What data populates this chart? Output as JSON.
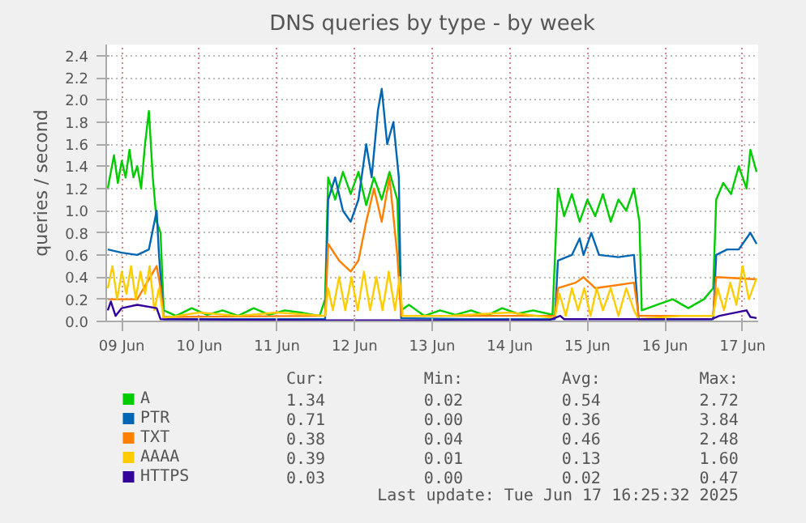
{
  "chart_data": {
    "type": "line",
    "title": "DNS queries by type - by week",
    "ylabel": "queries / second",
    "xlim": [
      "2025-06-09T07:12",
      "2025-06-17T16:48"
    ],
    "ylim": [
      0,
      2.5
    ],
    "xticks": [
      {
        "value": "2025-06-09T12:00",
        "label": "09 Jun"
      },
      {
        "value": "2025-06-10T12:00",
        "label": "10 Jun"
      },
      {
        "value": "2025-06-11T12:00",
        "label": "11 Jun"
      },
      {
        "value": "2025-06-12T12:00",
        "label": "12 Jun"
      },
      {
        "value": "2025-06-13T12:00",
        "label": "13 Jun"
      },
      {
        "value": "2025-06-14T12:00",
        "label": "14 Jun"
      },
      {
        "value": "2025-06-15T12:00",
        "label": "15 Jun"
      },
      {
        "value": "2025-06-16T12:00",
        "label": "16 Jun"
      },
      {
        "value": "2025-06-17T12:00",
        "label": "17 Jun"
      }
    ],
    "yticks": [
      {
        "value": 0,
        "label": "0.0"
      },
      {
        "value": 0.2,
        "label": "0.2"
      },
      {
        "value": 0.4,
        "label": "0.4"
      },
      {
        "value": 0.6,
        "label": "0.6"
      },
      {
        "value": 0.8,
        "label": "0.8"
      },
      {
        "value": 1,
        "label": "1.0"
      },
      {
        "value": 1.2,
        "label": "1.2"
      },
      {
        "value": 1.4,
        "label": "1.4"
      },
      {
        "value": 1.6,
        "label": "1.6"
      },
      {
        "value": 1.8,
        "label": "1.8"
      },
      {
        "value": 2,
        "label": "2.0"
      },
      {
        "value": 2.2,
        "label": "2.2"
      },
      {
        "value": 2.4,
        "label": "2.4"
      }
    ],
    "grid": true,
    "legend": "bottom",
    "series": [
      {
        "name": "A",
        "color": "#00cc00",
        "x": [
          "2025-06-09T07:41",
          "2025-06-09T09:36",
          "2025-06-09T10:48",
          "2025-06-09T12:00",
          "2025-06-09T13:12",
          "2025-06-09T14:24",
          "2025-06-09T15:36",
          "2025-06-09T16:48",
          "2025-06-09T18:00",
          "2025-06-09T19:12",
          "2025-06-09T20:24",
          "2025-06-09T21:36",
          "2025-06-09T22:48",
          "2025-06-10T00:00",
          "2025-06-10T00:58",
          "2025-06-10T04:48",
          "2025-06-10T09:36",
          "2025-06-10T14:24",
          "2025-06-10T19:12",
          "2025-06-11T00:00",
          "2025-06-11T04:48",
          "2025-06-11T09:36",
          "2025-06-11T14:24",
          "2025-06-11T19:12",
          "2025-06-12T01:12",
          "2025-06-12T02:53",
          "2025-06-12T03:50",
          "2025-06-12T06:00",
          "2025-06-12T08:24",
          "2025-06-12T10:48",
          "2025-06-12T13:12",
          "2025-06-12T15:36",
          "2025-06-12T18:00",
          "2025-06-12T20:24",
          "2025-06-12T22:48",
          "2025-06-13T01:12",
          "2025-06-13T02:24",
          "2025-06-13T04:48",
          "2025-06-13T09:36",
          "2025-06-13T14:24",
          "2025-06-13T19:12",
          "2025-06-14T00:00",
          "2025-06-14T04:48",
          "2025-06-14T09:36",
          "2025-06-14T14:24",
          "2025-06-14T19:12",
          "2025-06-15T01:12",
          "2025-06-15T02:53",
          "2025-06-15T04:48",
          "2025-06-15T07:12",
          "2025-06-15T09:36",
          "2025-06-15T12:00",
          "2025-06-15T14:24",
          "2025-06-15T16:48",
          "2025-06-15T19:12",
          "2025-06-15T21:36",
          "2025-06-16T00:00",
          "2025-06-16T02:24",
          "2025-06-16T04:05",
          "2025-06-16T04:48",
          "2025-06-16T09:36",
          "2025-06-16T14:24",
          "2025-06-16T19:12",
          "2025-06-17T00:00",
          "2025-06-17T02:53",
          "2025-06-17T03:50",
          "2025-06-17T06:00",
          "2025-06-17T08:24",
          "2025-06-17T10:48",
          "2025-06-17T13:12",
          "2025-06-17T14:24",
          "2025-06-17T16:19"
        ],
        "values": [
          1.2,
          1.5,
          1.25,
          1.45,
          1.3,
          1.55,
          1.3,
          1.4,
          1.2,
          1.6,
          1.9,
          1.3,
          0.9,
          0.8,
          0.1,
          0.05,
          0.12,
          0.06,
          0.1,
          0.05,
          0.12,
          0.06,
          0.1,
          0.08,
          0.05,
          0.2,
          1.3,
          1.1,
          1.35,
          1.15,
          1.35,
          1.05,
          1.3,
          1.1,
          1.35,
          1.1,
          0.1,
          0.15,
          0.05,
          0.1,
          0.06,
          0.1,
          0.05,
          0.12,
          0.07,
          0.1,
          0.06,
          1.2,
          0.95,
          1.15,
          0.9,
          1.1,
          0.95,
          1.15,
          0.9,
          1.1,
          1.0,
          1.2,
          0.9,
          0.1,
          0.15,
          0.2,
          0.12,
          0.2,
          0.3,
          1.1,
          1.25,
          1.15,
          1.4,
          1.2,
          1.55,
          1.35
        ]
      },
      {
        "name": "PTR",
        "color": "#0066b3",
        "x": [
          "2025-06-09T07:41",
          "2025-06-09T12:00",
          "2025-06-09T16:48",
          "2025-06-09T20:24",
          "2025-06-09T22:48",
          "2025-06-09T23:31",
          "2025-06-10T00:58",
          "2025-06-11T00:00",
          "2025-06-12T02:53",
          "2025-06-12T03:50",
          "2025-06-12T06:00",
          "2025-06-12T08:24",
          "2025-06-12T10:48",
          "2025-06-12T13:12",
          "2025-06-12T15:36",
          "2025-06-12T17:17",
          "2025-06-12T19:12",
          "2025-06-12T20:24",
          "2025-06-12T22:05",
          "2025-06-13T00:00",
          "2025-06-13T01:41",
          "2025-06-13T02:24",
          "2025-06-14T00:00",
          "2025-06-15T01:55",
          "2025-06-15T02:53",
          "2025-06-15T07:12",
          "2025-06-15T09:36",
          "2025-06-15T10:48",
          "2025-06-15T13:12",
          "2025-06-15T15:36",
          "2025-06-15T21:36",
          "2025-06-16T02:24",
          "2025-06-16T03:50",
          "2025-06-17T02:53",
          "2025-06-17T03:50",
          "2025-06-17T07:12",
          "2025-06-17T10:48",
          "2025-06-17T14:24",
          "2025-06-17T16:19"
        ],
        "values": [
          0.65,
          0.62,
          0.6,
          0.65,
          1.0,
          0.6,
          0.02,
          0.02,
          0.02,
          1.1,
          1.3,
          1.0,
          0.9,
          1.1,
          1.6,
          1.3,
          1.9,
          2.1,
          1.6,
          1.8,
          1.3,
          0.03,
          0.02,
          0.02,
          0.55,
          0.6,
          0.75,
          0.6,
          0.8,
          0.6,
          0.58,
          0.6,
          0.02,
          0.02,
          0.6,
          0.65,
          0.65,
          0.8,
          0.7
        ]
      },
      {
        "name": "TXT",
        "color": "#ff8000",
        "x": [
          "2025-06-09T07:41",
          "2025-06-09T16:48",
          "2025-06-09T22:48",
          "2025-06-10T00:00",
          "2025-06-10T00:58",
          "2025-06-12T02:53",
          "2025-06-12T03:50",
          "2025-06-12T07:12",
          "2025-06-12T10:48",
          "2025-06-12T13:12",
          "2025-06-12T15:36",
          "2025-06-12T18:00",
          "2025-06-12T20:24",
          "2025-06-12T22:48",
          "2025-06-13T01:12",
          "2025-06-13T02:24",
          "2025-06-15T01:55",
          "2025-06-15T02:53",
          "2025-06-15T08:24",
          "2025-06-15T10:48",
          "2025-06-15T14:24",
          "2025-06-16T02:24",
          "2025-06-16T03:50",
          "2025-06-17T02:53",
          "2025-06-17T03:50",
          "2025-06-17T16:19"
        ],
        "values": [
          0.2,
          0.2,
          0.5,
          0.3,
          0.04,
          0.05,
          0.7,
          0.55,
          0.45,
          0.55,
          0.9,
          1.2,
          0.9,
          1.3,
          0.6,
          0.05,
          0.05,
          0.3,
          0.35,
          0.4,
          0.3,
          0.35,
          0.05,
          0.05,
          0.4,
          0.38
        ]
      },
      {
        "name": "AAAA",
        "color": "#ffcc00",
        "x": [
          "2025-06-09T07:41",
          "2025-06-09T09:07",
          "2025-06-09T10:34",
          "2025-06-09T12:00",
          "2025-06-09T13:26",
          "2025-06-09T14:53",
          "2025-06-09T16:19",
          "2025-06-09T17:46",
          "2025-06-09T19:12",
          "2025-06-09T20:38",
          "2025-06-09T22:05",
          "2025-06-09T23:31",
          "2025-06-10T00:58",
          "2025-06-10T12:00",
          "2025-06-11T00:00",
          "2025-06-11T12:00",
          "2025-06-12T02:53",
          "2025-06-12T03:50",
          "2025-06-12T05:17",
          "2025-06-12T07:12",
          "2025-06-12T09:07",
          "2025-06-12T11:02",
          "2025-06-12T12:58",
          "2025-06-12T14:53",
          "2025-06-12T16:48",
          "2025-06-12T18:43",
          "2025-06-12T20:38",
          "2025-06-12T22:34",
          "2025-06-13T00:29",
          "2025-06-13T01:55",
          "2025-06-13T02:53",
          "2025-06-13T16:48",
          "2025-06-14T12:00",
          "2025-06-15T01:55",
          "2025-06-15T03:22",
          "2025-06-15T05:17",
          "2025-06-15T07:12",
          "2025-06-15T09:07",
          "2025-06-15T11:02",
          "2025-06-15T12:58",
          "2025-06-15T14:53",
          "2025-06-15T16:48",
          "2025-06-15T19:12",
          "2025-06-15T21:36",
          "2025-06-16T00:00",
          "2025-06-16T02:24",
          "2025-06-16T03:50",
          "2025-06-16T16:48",
          "2025-06-17T02:53",
          "2025-06-17T04:19",
          "2025-06-17T06:14",
          "2025-06-17T08:10",
          "2025-06-17T10:05",
          "2025-06-17T12:00",
          "2025-06-17T13:55",
          "2025-06-17T16:19"
        ],
        "values": [
          0.3,
          0.5,
          0.2,
          0.45,
          0.25,
          0.5,
          0.2,
          0.45,
          0.25,
          0.5,
          0.1,
          0.3,
          0.03,
          0.08,
          0.05,
          0.08,
          0.05,
          0.3,
          0.1,
          0.4,
          0.1,
          0.4,
          0.1,
          0.45,
          0.1,
          0.4,
          0.1,
          0.45,
          0.1,
          0.4,
          0.05,
          0.05,
          0.08,
          0.03,
          0.25,
          0.05,
          0.3,
          0.1,
          0.3,
          0.05,
          0.3,
          0.1,
          0.3,
          0.05,
          0.3,
          0.1,
          0.02,
          0.05,
          0.05,
          0.3,
          0.1,
          0.35,
          0.15,
          0.5,
          0.2,
          0.39
        ]
      },
      {
        "name": "HTTPS",
        "color": "#330099",
        "x": [
          "2025-06-09T07:41",
          "2025-06-09T08:38",
          "2025-06-09T10:05",
          "2025-06-09T12:00",
          "2025-06-09T16:48",
          "2025-06-09T22:48",
          "2025-06-10T00:00",
          "2025-06-12T02:53",
          "2025-06-15T00:00",
          "2025-06-15T03:36",
          "2025-06-15T04:48",
          "2025-06-17T02:24",
          "2025-06-17T04:48",
          "2025-06-17T13:12",
          "2025-06-17T14:24",
          "2025-06-17T16:19"
        ],
        "values": [
          0.1,
          0.18,
          0.05,
          0.12,
          0.15,
          0.12,
          0.02,
          0.01,
          0.01,
          0.05,
          0.02,
          0.02,
          0.05,
          0.1,
          0.04,
          0.03
        ]
      }
    ],
    "annotations": [
      "Cur:",
      "Min:",
      "Avg:",
      "Max:",
      "1.34",
      "0.02",
      "0.54",
      "2.72",
      "0.71",
      "0.00",
      "0.36",
      "3.84",
      "0.38",
      "0.04",
      "0.46",
      "2.48",
      "0.39",
      "0.01",
      "0.13",
      "1.60",
      "0.03",
      "0.00",
      "0.02",
      "0.47",
      "Last update: Tue Jun 17 16:25:32 2025"
    ]
  }
}
